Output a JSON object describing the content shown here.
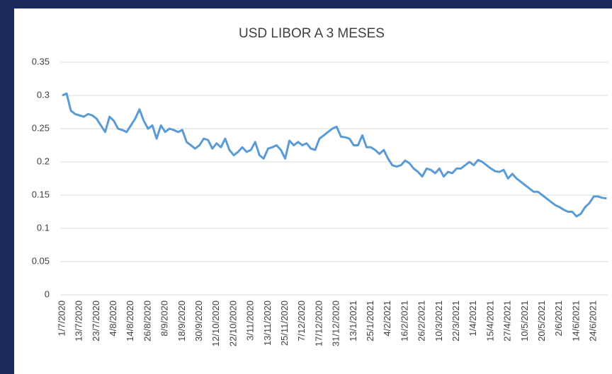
{
  "chart_data": {
    "type": "line",
    "title": "USD LIBOR A 3 MESES",
    "categories": [
      "1/7/2020",
      null,
      null,
      null,
      "13/7/2020",
      null,
      null,
      null,
      "23/7/2020",
      null,
      null,
      null,
      "4/8/2020",
      null,
      null,
      null,
      "14/8/2020",
      null,
      null,
      null,
      "26/8/2020",
      null,
      null,
      null,
      "8/9/2020",
      null,
      null,
      null,
      "18/9/2020",
      null,
      null,
      null,
      "30/9/2020",
      null,
      null,
      null,
      "12/10/2020",
      null,
      null,
      null,
      "22/10/2020",
      null,
      null,
      null,
      "3/11/2020",
      null,
      null,
      null,
      "13/11/2020",
      null,
      null,
      null,
      "25/11/2020",
      null,
      null,
      null,
      "7/12/2020",
      null,
      null,
      null,
      "17/12/2020",
      null,
      null,
      null,
      "31/12/2020",
      null,
      null,
      null,
      "13/1/2021",
      null,
      null,
      null,
      "25/1/2021",
      null,
      null,
      null,
      "4/2/2021",
      null,
      null,
      null,
      "16/2/2021",
      null,
      null,
      null,
      "26/2/2021",
      null,
      null,
      null,
      "10/3/2021",
      null,
      null,
      null,
      "22/3/2021",
      null,
      null,
      null,
      "1/4/2021",
      null,
      null,
      null,
      "15/4/2021",
      null,
      null,
      null,
      "27/4/2021",
      null,
      null,
      null,
      "10/5/2021",
      null,
      null,
      null,
      "20/5/2021",
      null,
      null,
      null,
      "2/6/2021",
      null,
      null,
      null,
      "14/6/2021",
      null,
      null,
      null,
      "24/6/2021",
      null,
      null,
      null
    ],
    "series": [
      {
        "name": "USD LIBOR A 3 MESES",
        "color": "#5b9bd5",
        "values": [
          0.3,
          0.303,
          0.277,
          0.272,
          0.27,
          0.268,
          0.272,
          0.27,
          0.265,
          0.255,
          0.245,
          0.268,
          0.262,
          0.25,
          0.248,
          0.245,
          0.255,
          0.265,
          0.279,
          0.262,
          0.25,
          0.255,
          0.235,
          0.255,
          0.245,
          0.25,
          0.248,
          0.245,
          0.248,
          0.23,
          0.225,
          0.22,
          0.225,
          0.235,
          0.233,
          0.22,
          0.228,
          0.222,
          0.235,
          0.218,
          0.21,
          0.215,
          0.222,
          0.215,
          0.218,
          0.23,
          0.21,
          0.205,
          0.22,
          0.222,
          0.225,
          0.218,
          0.205,
          0.232,
          0.225,
          0.23,
          0.225,
          0.228,
          0.22,
          0.218,
          0.235,
          0.24,
          0.245,
          0.25,
          0.253,
          0.238,
          0.237,
          0.235,
          0.225,
          0.225,
          0.24,
          0.222,
          0.222,
          0.218,
          0.212,
          0.218,
          0.205,
          0.195,
          0.193,
          0.195,
          0.202,
          0.198,
          0.19,
          0.185,
          0.178,
          0.19,
          0.188,
          0.183,
          0.19,
          0.178,
          0.185,
          0.183,
          0.19,
          0.19,
          0.195,
          0.2,
          0.195,
          0.203,
          0.2,
          0.195,
          0.19,
          0.186,
          0.185,
          0.188,
          0.175,
          0.182,
          0.175,
          0.17,
          0.165,
          0.16,
          0.155,
          0.155,
          0.15,
          0.145,
          0.14,
          0.135,
          0.132,
          0.128,
          0.125,
          0.125,
          0.118,
          0.122,
          0.132,
          0.138,
          0.148,
          0.148,
          0.146,
          0.145
        ]
      }
    ],
    "ylim": [
      0,
      0.35
    ],
    "yticks": [
      0,
      0.05,
      0.1,
      0.15,
      0.2,
      0.25,
      0.3,
      0.35
    ],
    "grid": true
  }
}
